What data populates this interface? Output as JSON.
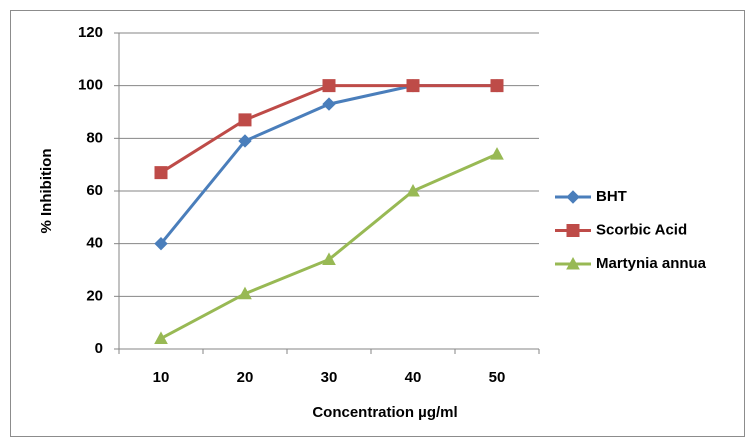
{
  "chart_data": {
    "type": "line",
    "x_label": "Concentration µg/ml",
    "y_label": "% Inhibition",
    "categories": [
      "10",
      "20",
      "30",
      "40",
      "50"
    ],
    "series": [
      {
        "name": "BHT",
        "color": "#4a7ebb",
        "marker": "diamond",
        "values": [
          40,
          79,
          93,
          100,
          100
        ]
      },
      {
        "name": "Scorbic Acid",
        "color": "#be4b48",
        "marker": "square",
        "values": [
          67,
          87,
          100,
          100,
          100
        ]
      },
      {
        "name": "Martynia annua",
        "color": "#98b954",
        "marker": "triangle",
        "values": [
          4,
          21,
          34,
          60,
          74
        ]
      }
    ],
    "ylim": [
      0,
      120
    ],
    "yticks": [
      0,
      20,
      40,
      60,
      80,
      100,
      120
    ],
    "grid": true,
    "legend": "right"
  }
}
